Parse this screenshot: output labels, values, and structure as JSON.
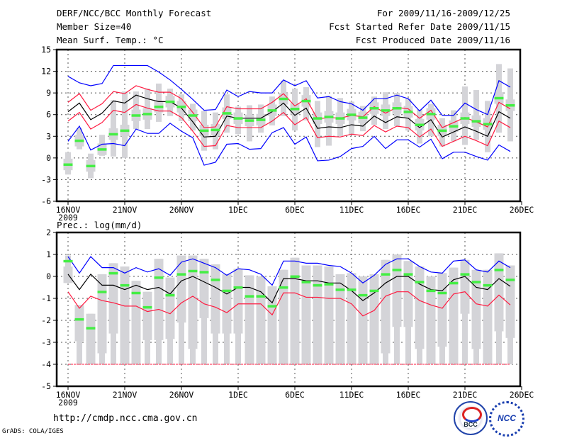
{
  "header": {
    "title": "DERF/NCC/BCC Monthly Forecast",
    "member_size": "Member Size=40",
    "variable": "Mean Surf. Temp.: °C",
    "period": "For 2009/11/16-2009/12/25",
    "start_date": "Fcst Started Refer Date 2009/11/15",
    "produced_date": "Fcst Produced Date 2009/11/16"
  },
  "footer": {
    "url": "http://cmdp.ncc.cma.gov.cn",
    "credit": "GrADS: COLA/IGES",
    "logos": [
      "BCC",
      "NCC"
    ]
  },
  "colors": {
    "outer": "#0000ff",
    "inner": "#ff1a40",
    "mean": "#000000",
    "median": "#44ee44",
    "box": "#d4d4d8",
    "grid": "#555555"
  },
  "chart_data": [
    {
      "type": "box-line",
      "ylabel": "",
      "ylim": [
        -6,
        15
      ],
      "yticks": [
        "15",
        "12",
        "9",
        "6",
        "3",
        "0",
        "-3",
        "-6"
      ],
      "xticks": [
        "16NOV",
        "21NOV",
        "26NOV",
        "1DEC",
        "6DEC",
        "11DEC",
        "16DEC",
        "21DEC",
        "26DEC"
      ],
      "xyear": "2009",
      "days": 40,
      "blue_upper": [
        11.3,
        10.4,
        10.0,
        10.3,
        12.8,
        12.8,
        12.8,
        12.8,
        11.9,
        10.8,
        9.5,
        8.1,
        6.6,
        6.7,
        9.4,
        8.5,
        9.2,
        9.0,
        9.0,
        10.8,
        10.0,
        10.7,
        8.3,
        8.5,
        7.8,
        7.5,
        6.6,
        8.2,
        8.2,
        8.7,
        8.2,
        6.5,
        8.0,
        5.9,
        5.9,
        7.6,
        6.7,
        6.0,
        10.7,
        9.8
      ],
      "red_upper": [
        7.7,
        8.9,
        6.6,
        7.5,
        9.2,
        8.9,
        10.0,
        9.5,
        9.1,
        9.1,
        8.2,
        6.3,
        4.2,
        4.3,
        7.1,
        6.8,
        6.8,
        6.8,
        7.7,
        8.9,
        7.2,
        8.2,
        5.4,
        5.6,
        5.5,
        5.9,
        5.7,
        7.1,
        6.2,
        7.0,
        6.8,
        5.5,
        6.6,
        4.2,
        4.9,
        5.6,
        5.0,
        4.3,
        7.7,
        6.8
      ],
      "mean": [
        6.4,
        7.6,
        5.3,
        6.2,
        7.9,
        7.6,
        8.7,
        8.2,
        7.8,
        7.8,
        6.9,
        5.0,
        2.9,
        3.0,
        5.8,
        5.5,
        5.5,
        5.5,
        6.4,
        7.6,
        5.9,
        6.9,
        4.1,
        4.3,
        4.2,
        4.6,
        4.4,
        5.8,
        4.9,
        5.7,
        5.5,
        4.2,
        5.3,
        2.9,
        3.6,
        4.3,
        3.7,
        3.0,
        6.4,
        5.5
      ],
      "red_lower": [
        5.1,
        6.3,
        4.0,
        4.9,
        6.6,
        6.3,
        7.4,
        6.9,
        6.5,
        6.5,
        5.6,
        3.7,
        1.6,
        1.7,
        4.5,
        4.2,
        4.2,
        4.2,
        5.1,
        6.3,
        4.6,
        5.6,
        2.8,
        3.0,
        2.9,
        3.3,
        3.1,
        4.5,
        3.6,
        4.4,
        4.2,
        2.9,
        4.0,
        1.6,
        2.3,
        3.0,
        2.4,
        1.7,
        5.1,
        4.2
      ],
      "blue_lower": [
        2.3,
        4.4,
        1.1,
        1.9,
        2.0,
        1.7,
        4.0,
        3.4,
        3.4,
        4.8,
        3.7,
        2.8,
        -1.0,
        -0.6,
        1.9,
        2.0,
        1.2,
        1.3,
        3.5,
        4.2,
        1.9,
        2.9,
        -0.4,
        -0.3,
        0.2,
        1.3,
        1.6,
        3.0,
        1.3,
        2.5,
        2.5,
        1.5,
        2.6,
        -0.1,
        0.8,
        0.8,
        0.2,
        -0.3,
        1.8,
        0.9
      ],
      "median": [
        -0.9,
        2.4,
        -1.1,
        1.2,
        3.3,
        3.8,
        5.9,
        6.1,
        7.1,
        7.8,
        7.1,
        5.9,
        3.8,
        3.9,
        6.2,
        5.5,
        5.2,
        5.3,
        6.6,
        8.2,
        6.8,
        7.9,
        5.5,
        5.7,
        5.5,
        6.0,
        5.6,
        6.9,
        6.6,
        6.9,
        6.4,
        4.6,
        6.1,
        3.8,
        4.4,
        5.5,
        5.1,
        4.7,
        8.3,
        7.3
      ],
      "box_min": [
        -2.3,
        1.2,
        -2.8,
        0.3,
        0.2,
        0.0,
        4.0,
        4.0,
        5.0,
        5.8,
        5.1,
        3.8,
        1.0,
        1.2,
        3.5,
        3.3,
        2.3,
        3.5,
        4.5,
        5.8,
        3.8,
        5.2,
        1.5,
        1.7,
        3.0,
        3.2,
        3.7,
        4.6,
        4.0,
        4.4,
        3.8,
        2.0,
        3.0,
        1.6,
        2.3,
        1.8,
        2.5,
        0.8,
        3.5,
        2.3
      ],
      "box_q1": [
        -1.7,
        1.6,
        -1.9,
        0.4,
        2.5,
        3.0,
        5.1,
        5.3,
        6.3,
        7.0,
        6.3,
        5.1,
        3.0,
        3.1,
        5.4,
        4.7,
        4.4,
        4.5,
        5.8,
        7.4,
        6.0,
        7.1,
        4.7,
        4.9,
        4.7,
        5.2,
        4.8,
        6.1,
        5.8,
        6.1,
        5.6,
        3.8,
        5.3,
        3.0,
        3.6,
        4.7,
        4.3,
        3.9,
        7.5,
        6.5
      ],
      "box_q3": [
        -0.1,
        3.2,
        -0.3,
        2.0,
        4.1,
        4.6,
        6.7,
        6.9,
        7.9,
        8.6,
        7.9,
        6.7,
        4.6,
        4.7,
        7.0,
        6.3,
        6.0,
        6.1,
        7.4,
        9.0,
        7.6,
        8.7,
        6.3,
        6.5,
        6.3,
        6.8,
        6.4,
        7.7,
        7.4,
        7.7,
        7.2,
        5.4,
        6.9,
        4.6,
        5.2,
        6.3,
        5.9,
        5.5,
        9.1,
        8.1
      ],
      "box_max": [
        0.8,
        4.1,
        0.6,
        3.2,
        8.0,
        9.2,
        9.2,
        9.6,
        10.3,
        9.6,
        8.8,
        7.5,
        6.5,
        6.3,
        8.8,
        7.1,
        7.3,
        7.4,
        8.5,
        10.7,
        9.6,
        9.8,
        7.9,
        8.6,
        8.3,
        7.8,
        7.2,
        8.5,
        9.1,
        9.0,
        8.2,
        6.7,
        7.5,
        5.5,
        6.6,
        9.9,
        9.4,
        7.9,
        13.0,
        12.4
      ]
    },
    {
      "type": "box-line",
      "title": "Prec.: log(mm/d)",
      "ylim": [
        -5,
        2
      ],
      "yticks": [
        "2",
        "1",
        "0",
        "-1",
        "-2",
        "-3",
        "-4",
        "-5"
      ],
      "xticks": [
        "16NOV",
        "21NOV",
        "26NOV",
        "1DEC",
        "6DEC",
        "11DEC",
        "16DEC",
        "21DEC",
        "26DEC"
      ],
      "xyear": "2009",
      "days": 40,
      "floor": -4,
      "blue_upper": [
        0.9,
        0.15,
        0.9,
        0.4,
        0.4,
        0.15,
        0.4,
        0.2,
        0.35,
        0.05,
        0.65,
        0.8,
        0.6,
        0.4,
        0.05,
        0.35,
        0.3,
        0.1,
        -0.4,
        0.7,
        0.7,
        0.6,
        0.6,
        0.5,
        0.45,
        0.15,
        -0.3,
        0.05,
        0.55,
        0.8,
        0.8,
        0.45,
        0.2,
        0.15,
        0.7,
        0.75,
        0.3,
        0.2,
        0.7,
        0.4
      ],
      "mean": [
        0.1,
        -0.6,
        0.1,
        -0.4,
        -0.4,
        -0.6,
        -0.4,
        -0.6,
        -0.5,
        -0.8,
        -0.2,
        0.0,
        -0.25,
        -0.5,
        -0.8,
        -0.5,
        -0.5,
        -0.7,
        -1.2,
        -0.1,
        -0.1,
        -0.2,
        -0.2,
        -0.3,
        -0.3,
        -0.65,
        -1.1,
        -0.75,
        -0.3,
        0.0,
        0.0,
        -0.35,
        -0.6,
        -0.65,
        -0.15,
        0.0,
        -0.5,
        -0.6,
        -0.1,
        -0.45
      ],
      "red_lower": [
        -0.7,
        -1.45,
        -0.9,
        -1.1,
        -1.2,
        -1.35,
        -1.35,
        -1.6,
        -1.5,
        -1.7,
        -1.2,
        -0.9,
        -1.25,
        -1.4,
        -1.65,
        -1.25,
        -1.25,
        -1.25,
        -1.75,
        -0.75,
        -0.75,
        -0.95,
        -0.95,
        -1.0,
        -1.0,
        -1.25,
        -1.8,
        -1.55,
        -0.9,
        -0.7,
        -0.7,
        -1.1,
        -1.3,
        -1.45,
        -0.8,
        -0.7,
        -1.25,
        -1.35,
        -0.85,
        -1.3
      ],
      "median": [
        0.7,
        -1.95,
        -2.35,
        -0.7,
        0.15,
        -0.4,
        -0.75,
        -1.4,
        -0.05,
        -0.85,
        0.1,
        0.25,
        0.2,
        -0.15,
        -0.65,
        -0.5,
        -0.9,
        -0.9,
        -1.35,
        -0.5,
        0.0,
        -0.25,
        -0.4,
        -0.35,
        -0.6,
        -0.6,
        -0.85,
        -0.65,
        0.1,
        0.3,
        0.1,
        -0.25,
        -0.65,
        -0.75,
        -0.3,
        0.1,
        -0.25,
        -0.4,
        0.3,
        -0.15
      ],
      "box_min": [
        -0.3,
        -4,
        -4,
        -4,
        -4,
        -4,
        -4,
        -4,
        -4,
        -4,
        -4,
        -4,
        -4,
        -4,
        -4,
        -4,
        -4,
        -4,
        -4,
        -4,
        -4,
        -4,
        -4,
        -4,
        -4,
        -4,
        -4,
        -4,
        -4,
        -4,
        -4,
        -4,
        -4,
        -4,
        -4,
        -4,
        -4,
        -4,
        -4,
        -4
      ],
      "box_q1": [
        -0.3,
        -2.95,
        -4,
        -3.5,
        -2.6,
        -4,
        -4,
        -2.9,
        -2.9,
        -2.85,
        -2.1,
        -3.3,
        -1.9,
        -2.6,
        -2.6,
        -2.6,
        -4,
        -4,
        -4,
        -4,
        -4,
        -4,
        -4,
        -4,
        -4,
        -4,
        -4,
        -4,
        -3.5,
        -2.3,
        -2.3,
        -3.3,
        -4,
        -3.2,
        -4,
        -1.7,
        -3.3,
        -4,
        -2.5,
        -2.8
      ],
      "box_q3": [
        0.45,
        -1.3,
        -1.7,
        0.1,
        0.6,
        0.45,
        -0.2,
        -0.7,
        0.8,
        -0.05,
        0.95,
        0.95,
        0.8,
        0.55,
        0.1,
        0.35,
        0.05,
        0.0,
        -0.45,
        0.3,
        0.85,
        0.5,
        0.5,
        0.45,
        0.1,
        0.15,
        0.0,
        0.1,
        0.75,
        1.0,
        0.7,
        0.45,
        0.0,
        0.15,
        0.4,
        0.75,
        0.3,
        0.3,
        1.05,
        0.5
      ],
      "box_max": [
        0.95,
        -1.3,
        -1.7,
        0.1,
        0.6,
        0.45,
        -0.2,
        -0.7,
        0.8,
        -0.05,
        0.95,
        0.95,
        0.8,
        0.55,
        0.1,
        0.35,
        0.05,
        0.0,
        -0.45,
        0.3,
        0.85,
        0.5,
        0.5,
        0.45,
        0.1,
        0.15,
        0.0,
        0.1,
        0.75,
        1.0,
        0.7,
        0.45,
        0.0,
        0.15,
        0.4,
        0.75,
        0.3,
        0.3,
        1.05,
        0.5
      ]
    }
  ]
}
